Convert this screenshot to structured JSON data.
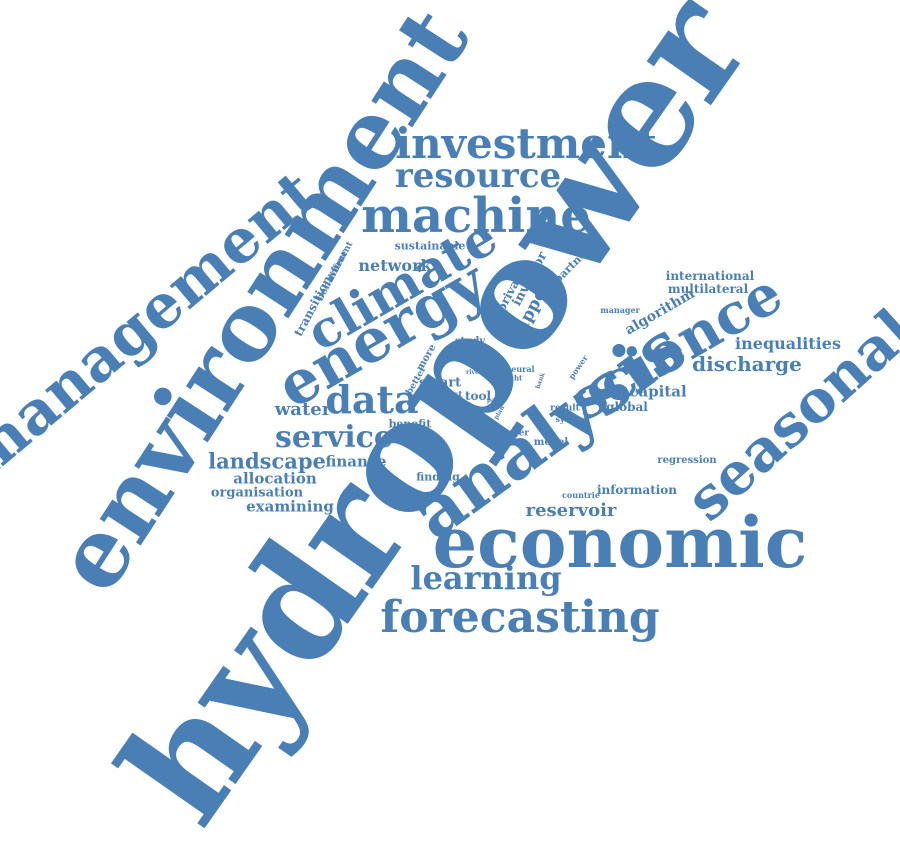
{
  "word_cloud": {
    "color": "#4a7fb5",
    "background": "#ffffff",
    "words": {
      "hydropower": "hydropower",
      "environment": "environment",
      "management": "management",
      "economic": "economic",
      "analysis": "analysis",
      "seasonal": "seasonal",
      "science": "science",
      "energy": "energy",
      "climate": "climate",
      "machine": "machine",
      "investment": "investment",
      "resource": "resource",
      "forecasting": "forecasting",
      "learning": "learning",
      "data": "data",
      "service": "service",
      "water": "water",
      "landscape": "landscape",
      "finance": "finance",
      "allocation": "allocation",
      "organisation": "organisation",
      "examining": "examining",
      "network": "network",
      "sustainable": "sustainable",
      "transition": "transition",
      "behaviour": "behaviour",
      "different": "different",
      "smart": "smart",
      "more": "more",
      "better": "better",
      "cost": "cost",
      "tool": "tool",
      "benefit": "benefit",
      "study": "study",
      "river": "river",
      "neural": "neural",
      "scht": "scht",
      "past": "past",
      "plan": "plan",
      "bank": "bank",
      "power": "power",
      "result": "result",
      "system": "system",
      "user": "user",
      "model": "model",
      "finding": "finding",
      "countrie": "countrie",
      "private": "private",
      "investor": "investor",
      "support": "support",
      "partner": "partner",
      "manager": "manager",
      "algorithm": "algorithm",
      "international": "international",
      "multilateral": "multilateral",
      "inequalities": "inequalities",
      "discharge": "discharge",
      "capital": "capital",
      "global": "global",
      "regression": "regression",
      "information": "information",
      "reservoir": "reservoir"
    }
  }
}
